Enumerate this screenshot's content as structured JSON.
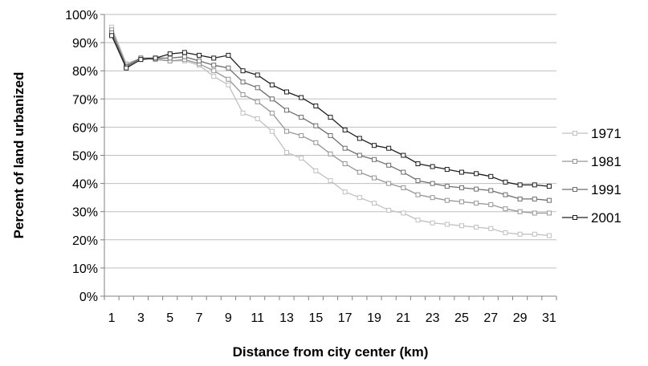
{
  "chart_data": {
    "type": "line",
    "title": "",
    "xlabel": "Distance from city center (km)",
    "ylabel": "Percent of land urbanized",
    "x": [
      1,
      2,
      3,
      4,
      5,
      6,
      7,
      8,
      9,
      10,
      11,
      12,
      13,
      14,
      15,
      16,
      17,
      18,
      19,
      20,
      21,
      22,
      23,
      24,
      25,
      26,
      27,
      28,
      29,
      30,
      31
    ],
    "x_tick_labels": [
      "1",
      "3",
      "5",
      "7",
      "9",
      "11",
      "13",
      "15",
      "17",
      "19",
      "21",
      "23",
      "25",
      "27",
      "29",
      "31"
    ],
    "x_tick_values": [
      1,
      3,
      5,
      7,
      9,
      11,
      13,
      15,
      17,
      19,
      21,
      23,
      25,
      27,
      29,
      31
    ],
    "ylim": [
      0,
      100
    ],
    "y_tick_values": [
      0,
      10,
      20,
      30,
      40,
      50,
      60,
      70,
      80,
      90,
      100
    ],
    "y_tick_labels": [
      "0%",
      "10%",
      "20%",
      "30%",
      "40%",
      "50%",
      "60%",
      "70%",
      "80%",
      "90%",
      "100%"
    ],
    "grid": "horizontal",
    "legend_position": "right",
    "series": [
      {
        "name": "1971",
        "color": "#c0c0c0",
        "values": [
          95.5,
          82.5,
          84.5,
          84.5,
          83.5,
          83.5,
          82.0,
          78.0,
          75.0,
          65.0,
          63.0,
          58.5,
          51.0,
          49.0,
          44.5,
          41.0,
          37.0,
          35.0,
          33.0,
          30.5,
          29.5,
          27.0,
          26.0,
          25.5,
          25.0,
          24.5,
          24.0,
          22.5,
          22.0,
          22.0,
          21.5
        ]
      },
      {
        "name": "1981",
        "color": "#969696",
        "values": [
          94.5,
          82.0,
          84.5,
          84.0,
          83.5,
          84.0,
          82.5,
          80.0,
          77.0,
          71.5,
          69.0,
          65.0,
          58.5,
          57.0,
          54.5,
          50.5,
          47.0,
          44.0,
          42.0,
          40.0,
          38.5,
          36.0,
          35.0,
          34.0,
          33.5,
          33.0,
          32.5,
          31.0,
          30.0,
          29.5,
          29.5
        ]
      },
      {
        "name": "1991",
        "color": "#6e6e6e",
        "values": [
          93.5,
          81.5,
          84.5,
          84.5,
          84.5,
          85.0,
          83.5,
          82.0,
          81.0,
          76.0,
          74.0,
          70.0,
          66.0,
          63.5,
          60.5,
          57.0,
          52.5,
          50.0,
          48.5,
          46.5,
          44.0,
          41.0,
          40.0,
          39.0,
          38.5,
          38.0,
          37.5,
          36.0,
          34.5,
          34.5,
          34.0
        ]
      },
      {
        "name": "2001",
        "color": "#1e1e1e",
        "values": [
          92.5,
          81.0,
          84.0,
          84.5,
          86.0,
          86.5,
          85.5,
          84.5,
          85.5,
          80.0,
          78.5,
          75.0,
          72.5,
          70.5,
          67.5,
          63.5,
          59.0,
          56.0,
          53.5,
          52.5,
          50.0,
          47.0,
          46.0,
          45.0,
          44.0,
          43.5,
          42.5,
          40.5,
          39.5,
          39.5,
          39.0
        ]
      }
    ]
  }
}
